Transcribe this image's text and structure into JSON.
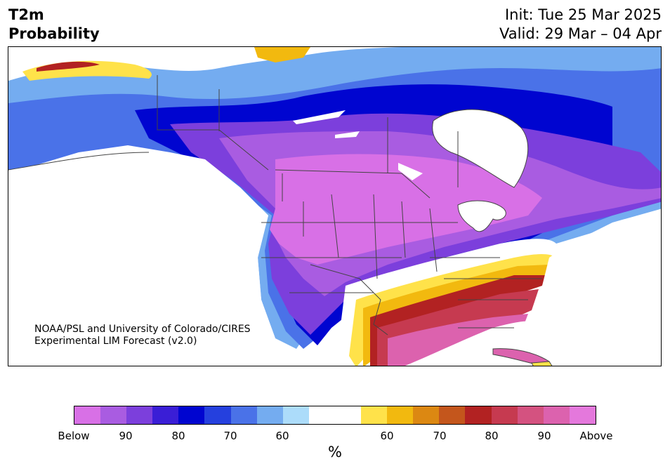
{
  "header": {
    "title_line1": "T2m",
    "title_line2": "Probability",
    "init": "Init: Tue 25 Mar 2025",
    "valid": "Valid: 29 Mar – 04 Apr"
  },
  "map": {
    "credit_line1": "NOAA/PSL and University of Colorado/CIRES",
    "credit_line2": "Experimental LIM Forecast (v2.0)"
  },
  "colorbar": {
    "unit": "%",
    "colors": [
      "#d870e6",
      "#a95ce1",
      "#7c3fdc",
      "#3a1ed6",
      "#0005d0",
      "#2540de",
      "#4a72e8",
      "#74acf0",
      "#acdcfa",
      "#ffffff",
      "#ffffff",
      "#ffe24a",
      "#f2b90f",
      "#dc8812",
      "#c4561c",
      "#b22222",
      "#c63a50",
      "#d45280",
      "#dc62ae",
      "#e478dc"
    ],
    "labels": [
      "Below",
      "90",
      "80",
      "70",
      "60",
      "60",
      "70",
      "80",
      "90",
      "Above"
    ]
  }
}
